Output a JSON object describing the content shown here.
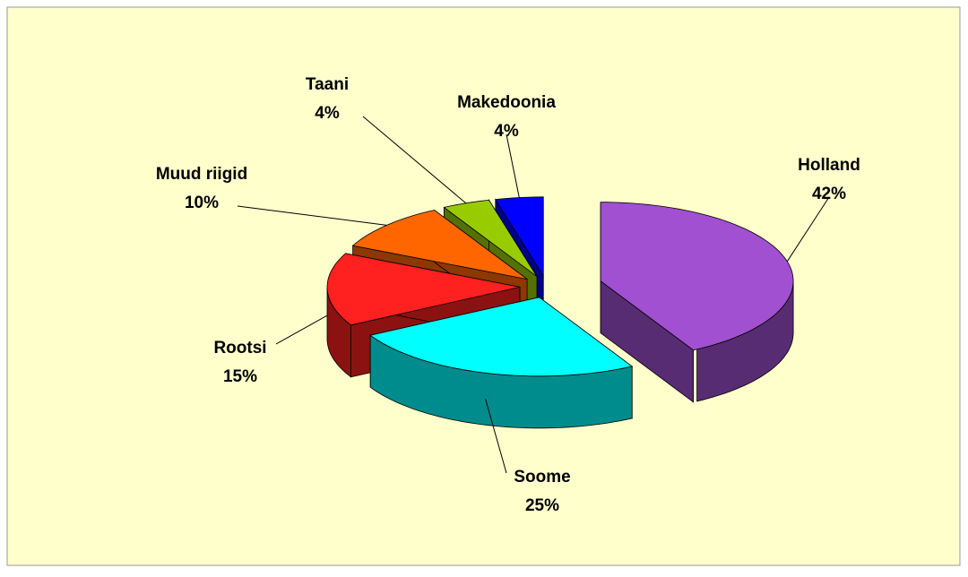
{
  "chart_data": {
    "type": "pie",
    "categories": [
      "Holland",
      "Soome",
      "Rootsi",
      "Muud riigid",
      "Taani",
      "Makedoonia"
    ],
    "values": [
      42,
      25,
      15,
      10,
      4,
      4
    ],
    "value_labels": [
      "42%",
      "25%",
      "15%",
      "10%",
      "4%",
      "4%"
    ],
    "colors": [
      "#a050d0",
      "#00ffff",
      "#ff2020",
      "#ff6600",
      "#99cc00",
      "#0000ff"
    ]
  }
}
